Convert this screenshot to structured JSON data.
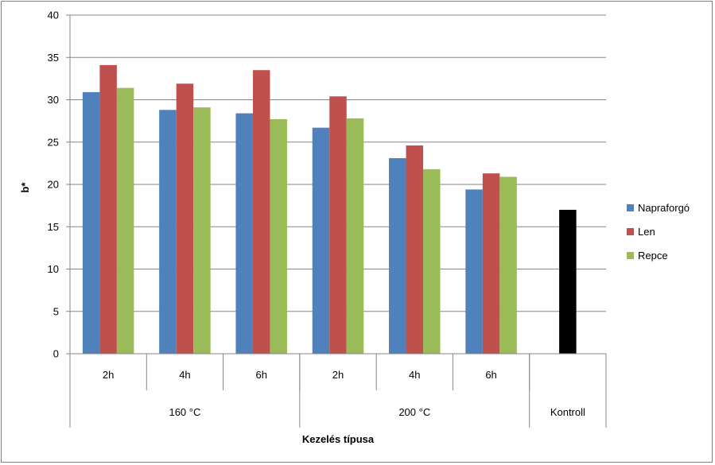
{
  "chart_data": {
    "type": "bar",
    "title": "",
    "ylabel": "b*",
    "xlabel": "Kezelés típusa",
    "ylim": [
      0,
      40
    ],
    "ytick_step": 5,
    "grid": true,
    "categories": [
      "2h",
      "4h",
      "6h",
      "2h",
      "4h",
      "6h",
      "Kontroll"
    ],
    "groups": [
      {
        "label": "160 °C",
        "span": 3
      },
      {
        "label": "200 °C",
        "span": 3
      },
      {
        "label": "Kontroll",
        "span": 1
      }
    ],
    "series": [
      {
        "name": "Napraforgó",
        "color": "#4F81BD",
        "values": [
          30.9,
          28.8,
          28.4,
          26.7,
          23.1,
          19.4,
          null
        ]
      },
      {
        "name": "Len",
        "color": "#C0504D",
        "values": [
          34.1,
          31.9,
          33.5,
          30.4,
          24.6,
          21.3,
          null
        ]
      },
      {
        "name": "Repce",
        "color": "#9BBB59",
        "values": [
          31.4,
          29.1,
          27.7,
          27.8,
          21.8,
          20.9,
          null
        ]
      },
      {
        "name": "Kontroll",
        "color": "#000000",
        "in_legend": false,
        "values": [
          null,
          null,
          null,
          null,
          null,
          null,
          17.0
        ]
      }
    ],
    "legend_position": "right"
  }
}
